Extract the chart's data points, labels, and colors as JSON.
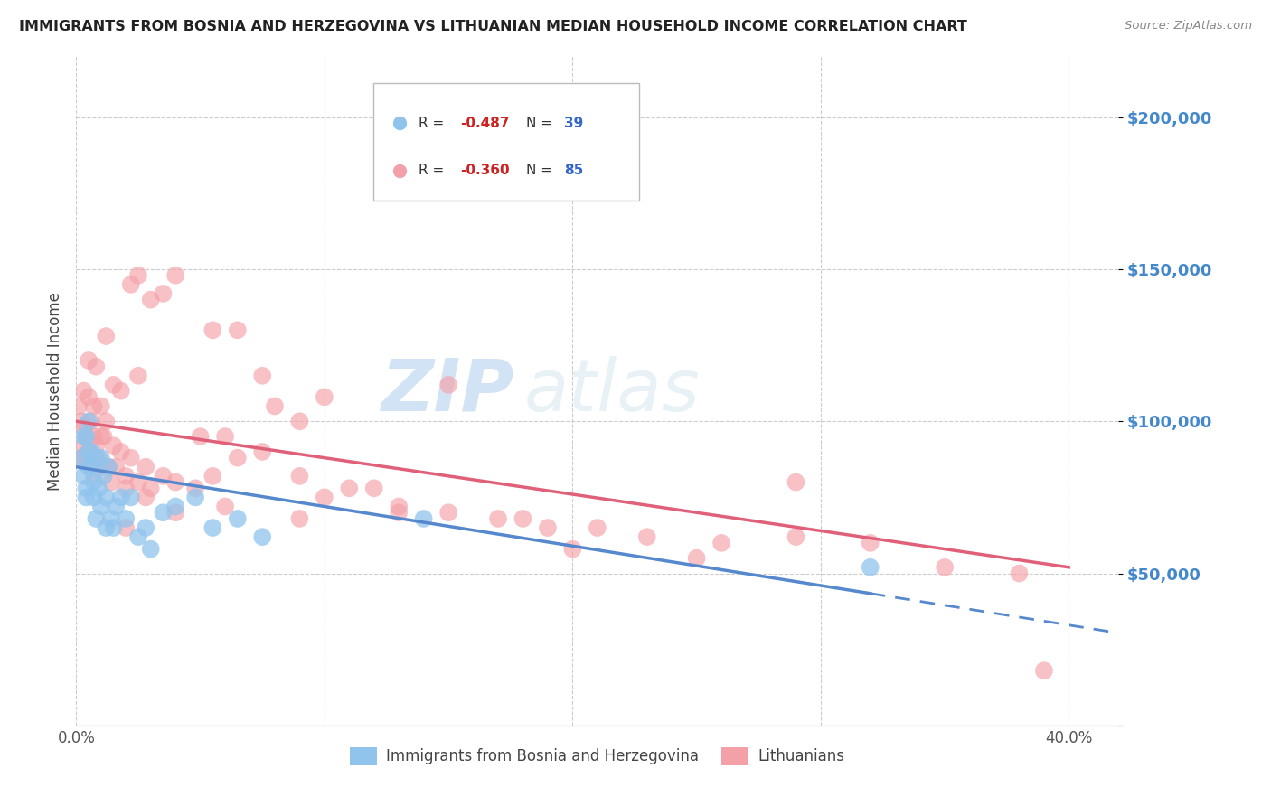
{
  "title": "IMMIGRANTS FROM BOSNIA AND HERZEGOVINA VS LITHUANIAN MEDIAN HOUSEHOLD INCOME CORRELATION CHART",
  "source": "Source: ZipAtlas.com",
  "ylabel": "Median Household Income",
  "xmin": 0.0,
  "xmax": 0.42,
  "ymin": 0,
  "ymax": 220000,
  "yticks": [
    0,
    50000,
    100000,
    150000,
    200000
  ],
  "ytick_labels": [
    "",
    "$50,000",
    "$100,000",
    "$150,000",
    "$200,000"
  ],
  "xticks": [
    0.0,
    0.1,
    0.2,
    0.3,
    0.4
  ],
  "xtick_labels": [
    "0.0%",
    "",
    "",
    "",
    "40.0%"
  ],
  "color_blue": "#90C4ED",
  "color_pink": "#F4A0A8",
  "color_blue_line": "#5588CC",
  "color_pink_line": "#E0607A",
  "color_ytick": "#4488CC",
  "watermark_zip": "ZIP",
  "watermark_atlas": "atlas",
  "blue_intercept": 85000,
  "blue_slope": -130000,
  "pink_intercept": 100000,
  "pink_slope": -120000,
  "blue_x": [
    0.002,
    0.003,
    0.004,
    0.004,
    0.005,
    0.005,
    0.006,
    0.007,
    0.008,
    0.009,
    0.01,
    0.01,
    0.011,
    0.012,
    0.013,
    0.014,
    0.015,
    0.016,
    0.018,
    0.02,
    0.022,
    0.025,
    0.028,
    0.03,
    0.035,
    0.04,
    0.048,
    0.055,
    0.065,
    0.075,
    0.003,
    0.004,
    0.005,
    0.006,
    0.007,
    0.008,
    0.012,
    0.14,
    0.32
  ],
  "blue_y": [
    88000,
    82000,
    95000,
    75000,
    100000,
    90000,
    85000,
    80000,
    88000,
    78000,
    72000,
    88000,
    82000,
    75000,
    85000,
    68000,
    65000,
    72000,
    75000,
    68000,
    75000,
    62000,
    65000,
    58000,
    70000,
    72000,
    75000,
    65000,
    68000,
    62000,
    95000,
    78000,
    85000,
    90000,
    75000,
    68000,
    65000,
    68000,
    52000
  ],
  "pink_x": [
    0.001,
    0.002,
    0.003,
    0.003,
    0.004,
    0.005,
    0.005,
    0.006,
    0.007,
    0.007,
    0.008,
    0.009,
    0.01,
    0.011,
    0.012,
    0.013,
    0.015,
    0.016,
    0.018,
    0.02,
    0.022,
    0.025,
    0.028,
    0.03,
    0.035,
    0.04,
    0.048,
    0.055,
    0.065,
    0.075,
    0.09,
    0.1,
    0.11,
    0.13,
    0.15,
    0.17,
    0.19,
    0.21,
    0.23,
    0.26,
    0.29,
    0.32,
    0.35,
    0.39,
    0.005,
    0.008,
    0.012,
    0.018,
    0.025,
    0.035,
    0.05,
    0.065,
    0.08,
    0.1,
    0.12,
    0.15,
    0.003,
    0.006,
    0.01,
    0.015,
    0.022,
    0.03,
    0.04,
    0.055,
    0.075,
    0.09,
    0.002,
    0.004,
    0.007,
    0.01,
    0.014,
    0.02,
    0.028,
    0.04,
    0.06,
    0.09,
    0.13,
    0.18,
    0.25,
    0.02,
    0.025,
    0.06,
    0.2,
    0.38,
    0.29
  ],
  "pink_y": [
    105000,
    100000,
    110000,
    92000,
    95000,
    108000,
    90000,
    88000,
    105000,
    95000,
    92000,
    88000,
    105000,
    95000,
    100000,
    85000,
    92000,
    85000,
    90000,
    82000,
    88000,
    80000,
    85000,
    78000,
    82000,
    80000,
    78000,
    82000,
    88000,
    90000,
    82000,
    75000,
    78000,
    72000,
    70000,
    68000,
    65000,
    65000,
    62000,
    60000,
    62000,
    60000,
    52000,
    18000,
    120000,
    118000,
    128000,
    110000,
    115000,
    142000,
    95000,
    130000,
    105000,
    108000,
    78000,
    112000,
    98000,
    100000,
    95000,
    112000,
    145000,
    140000,
    148000,
    130000,
    115000,
    100000,
    88000,
    88000,
    82000,
    85000,
    80000,
    78000,
    75000,
    70000,
    72000,
    68000,
    70000,
    68000,
    55000,
    65000,
    148000,
    95000,
    58000,
    50000,
    80000
  ]
}
